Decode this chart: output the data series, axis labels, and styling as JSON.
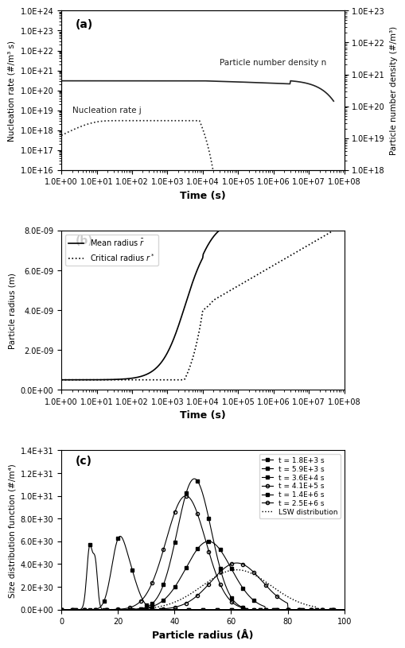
{
  "panel_a": {
    "label": "(a)",
    "xlabel": "Time (s)",
    "ylabel_left": "Nucleation rate (#/m³ s)",
    "ylabel_right": "Particle number density (#/m³)",
    "xlim": [
      1.0,
      100000000.0
    ],
    "ylim_left": [
      1e+16,
      1e+24
    ],
    "ylim_right": [
      1e+18,
      1e+23
    ],
    "nucleation_label": "Nucleation rate j",
    "density_label": "Particle number density n"
  },
  "panel_b": {
    "label": "(b)",
    "xlabel": "Time (s)",
    "ylabel": "Particle radius (m)",
    "xlim": [
      1.0,
      100000000.0
    ],
    "ylim": [
      0.0,
      8e-09
    ],
    "mean_label": "Mean radius $\\bar{r}$",
    "critical_label": "Critical radius $r^*$"
  },
  "panel_c": {
    "label": "(c)",
    "xlabel": "Particle radius (Å)",
    "ylabel": "Size distribution function (#/m⁴)",
    "xlim": [
      0,
      100
    ],
    "ylim": [
      0.0,
      1.4e+31
    ],
    "legend": [
      "t = 1.8E+3 s",
      "t = 5.9E+3 s",
      "t = 3.6E+4 s",
      "t = 4.1E+5 s",
      "t = 1.4E+6 s",
      "t = 2.5E+6 s",
      "LSW distribution"
    ]
  }
}
